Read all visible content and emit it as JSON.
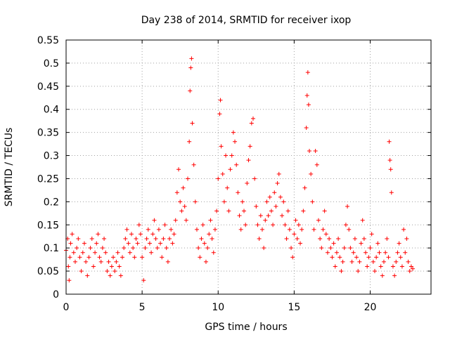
{
  "chart_data": {
    "type": "scatter",
    "title": "Day 238 of 2014, SRMTID for receiver ixop",
    "xlabel": "GPS time / hours",
    "ylabel": "SRMTID / TECUs",
    "xlim": [
      0,
      24
    ],
    "ylim": [
      0,
      0.55
    ],
    "xticks": [
      0,
      5,
      10,
      15,
      20
    ],
    "yticks": [
      0,
      0.05,
      0.1,
      0.15,
      0.2,
      0.25,
      0.3,
      0.35,
      0.4,
      0.45,
      0.5,
      0.55
    ],
    "xtick_labels": [
      "0",
      "5",
      "10",
      "15",
      "20"
    ],
    "ytick_labels": [
      "0",
      "0.05",
      "0.1",
      "0.15",
      "0.2",
      "0.25",
      "0.3",
      "0.35",
      "0.4",
      "0.45",
      "0.5",
      "0.55"
    ],
    "grid": true,
    "marker": "+",
    "marker_color": "#ff0000",
    "series": [
      {
        "name": "SRMTID",
        "points": [
          [
            0.0,
            0.095
          ],
          [
            0.1,
            0.12
          ],
          [
            0.15,
            0.06
          ],
          [
            0.2,
            0.03
          ],
          [
            0.25,
            0.08
          ],
          [
            0.3,
            0.11
          ],
          [
            0.4,
            0.13
          ],
          [
            0.5,
            0.09
          ],
          [
            0.6,
            0.07
          ],
          [
            0.7,
            0.1
          ],
          [
            0.8,
            0.12
          ],
          [
            0.9,
            0.08
          ],
          [
            1.0,
            0.05
          ],
          [
            1.1,
            0.09
          ],
          [
            1.2,
            0.11
          ],
          [
            1.3,
            0.07
          ],
          [
            1.4,
            0.04
          ],
          [
            1.5,
            0.08
          ],
          [
            1.6,
            0.1
          ],
          [
            1.7,
            0.12
          ],
          [
            1.8,
            0.06
          ],
          [
            1.9,
            0.09
          ],
          [
            2.0,
            0.11
          ],
          [
            2.1,
            0.13
          ],
          [
            2.2,
            0.08
          ],
          [
            2.3,
            0.07
          ],
          [
            2.4,
            0.1
          ],
          [
            2.5,
            0.12
          ],
          [
            2.6,
            0.09
          ],
          [
            2.7,
            0.05
          ],
          [
            2.8,
            0.07
          ],
          [
            2.9,
            0.04
          ],
          [
            3.0,
            0.06
          ],
          [
            3.1,
            0.08
          ],
          [
            3.2,
            0.05
          ],
          [
            3.3,
            0.07
          ],
          [
            3.4,
            0.09
          ],
          [
            3.5,
            0.06
          ],
          [
            3.6,
            0.04
          ],
          [
            3.7,
            0.08
          ],
          [
            3.8,
            0.1
          ],
          [
            3.9,
            0.12
          ],
          [
            4.0,
            0.14
          ],
          [
            4.1,
            0.11
          ],
          [
            4.2,
            0.09
          ],
          [
            4.3,
            0.13
          ],
          [
            4.4,
            0.1
          ],
          [
            4.5,
            0.08
          ],
          [
            4.6,
            0.12
          ],
          [
            4.7,
            0.11
          ],
          [
            4.8,
            0.15
          ],
          [
            4.9,
            0.13
          ],
          [
            5.0,
            0.08
          ],
          [
            5.1,
            0.03
          ],
          [
            5.2,
            0.1
          ],
          [
            5.3,
            0.12
          ],
          [
            5.4,
            0.14
          ],
          [
            5.5,
            0.11
          ],
          [
            5.6,
            0.09
          ],
          [
            5.7,
            0.13
          ],
          [
            5.8,
            0.16
          ],
          [
            5.9,
            0.12
          ],
          [
            6.0,
            0.1
          ],
          [
            6.1,
            0.14
          ],
          [
            6.2,
            0.11
          ],
          [
            6.3,
            0.08
          ],
          [
            6.4,
            0.12
          ],
          [
            6.5,
            0.15
          ],
          [
            6.6,
            0.1
          ],
          [
            6.7,
            0.07
          ],
          [
            6.8,
            0.12
          ],
          [
            6.9,
            0.14
          ],
          [
            7.0,
            0.11
          ],
          [
            7.1,
            0.13
          ],
          [
            7.2,
            0.16
          ],
          [
            7.3,
            0.22
          ],
          [
            7.4,
            0.27
          ],
          [
            7.5,
            0.2
          ],
          [
            7.6,
            0.18
          ],
          [
            7.7,
            0.23
          ],
          [
            7.8,
            0.19
          ],
          [
            7.9,
            0.16
          ],
          [
            8.0,
            0.25
          ],
          [
            8.1,
            0.33
          ],
          [
            8.15,
            0.44
          ],
          [
            8.2,
            0.49
          ],
          [
            8.25,
            0.51
          ],
          [
            8.3,
            0.37
          ],
          [
            8.4,
            0.28
          ],
          [
            8.5,
            0.2
          ],
          [
            8.6,
            0.14
          ],
          [
            8.7,
            0.1
          ],
          [
            8.8,
            0.08
          ],
          [
            8.9,
            0.12
          ],
          [
            9.0,
            0.15
          ],
          [
            9.1,
            0.11
          ],
          [
            9.2,
            0.07
          ],
          [
            9.3,
            0.1
          ],
          [
            9.4,
            0.13
          ],
          [
            9.5,
            0.16
          ],
          [
            9.6,
            0.12
          ],
          [
            9.7,
            0.09
          ],
          [
            9.8,
            0.14
          ],
          [
            9.9,
            0.18
          ],
          [
            10.0,
            0.25
          ],
          [
            10.1,
            0.39
          ],
          [
            10.15,
            0.42
          ],
          [
            10.2,
            0.32
          ],
          [
            10.3,
            0.26
          ],
          [
            10.4,
            0.2
          ],
          [
            10.5,
            0.3
          ],
          [
            10.6,
            0.23
          ],
          [
            10.7,
            0.18
          ],
          [
            10.8,
            0.27
          ],
          [
            10.9,
            0.3
          ],
          [
            11.0,
            0.35
          ],
          [
            11.1,
            0.33
          ],
          [
            11.2,
            0.28
          ],
          [
            11.3,
            0.22
          ],
          [
            11.4,
            0.17
          ],
          [
            11.5,
            0.14
          ],
          [
            11.6,
            0.2
          ],
          [
            11.7,
            0.18
          ],
          [
            11.8,
            0.15
          ],
          [
            11.9,
            0.24
          ],
          [
            12.0,
            0.29
          ],
          [
            12.1,
            0.32
          ],
          [
            12.2,
            0.37
          ],
          [
            12.3,
            0.38
          ],
          [
            12.4,
            0.25
          ],
          [
            12.5,
            0.19
          ],
          [
            12.6,
            0.15
          ],
          [
            12.7,
            0.12
          ],
          [
            12.8,
            0.17
          ],
          [
            12.9,
            0.14
          ],
          [
            13.0,
            0.1
          ],
          [
            13.1,
            0.16
          ],
          [
            13.2,
            0.2
          ],
          [
            13.3,
            0.17
          ],
          [
            13.4,
            0.21
          ],
          [
            13.5,
            0.18
          ],
          [
            13.6,
            0.15
          ],
          [
            13.7,
            0.22
          ],
          [
            13.8,
            0.19
          ],
          [
            13.9,
            0.24
          ],
          [
            14.0,
            0.26
          ],
          [
            14.1,
            0.21
          ],
          [
            14.2,
            0.17
          ],
          [
            14.3,
            0.2
          ],
          [
            14.4,
            0.15
          ],
          [
            14.5,
            0.12
          ],
          [
            14.6,
            0.18
          ],
          [
            14.7,
            0.14
          ],
          [
            14.8,
            0.1
          ],
          [
            14.9,
            0.08
          ],
          [
            15.0,
            0.13
          ],
          [
            15.1,
            0.16
          ],
          [
            15.2,
            0.12
          ],
          [
            15.3,
            0.15
          ],
          [
            15.4,
            0.11
          ],
          [
            15.5,
            0.14
          ],
          [
            15.6,
            0.18
          ],
          [
            15.7,
            0.23
          ],
          [
            15.8,
            0.36
          ],
          [
            15.85,
            0.43
          ],
          [
            15.9,
            0.48
          ],
          [
            15.95,
            0.41
          ],
          [
            16.0,
            0.31
          ],
          [
            16.1,
            0.26
          ],
          [
            16.2,
            0.2
          ],
          [
            16.3,
            0.14
          ],
          [
            16.4,
            0.31
          ],
          [
            16.5,
            0.28
          ],
          [
            16.6,
            0.16
          ],
          [
            16.7,
            0.12
          ],
          [
            16.8,
            0.1
          ],
          [
            16.9,
            0.14
          ],
          [
            17.0,
            0.18
          ],
          [
            17.1,
            0.13
          ],
          [
            17.2,
            0.09
          ],
          [
            17.3,
            0.12
          ],
          [
            17.4,
            0.1
          ],
          [
            17.5,
            0.08
          ],
          [
            17.6,
            0.11
          ],
          [
            17.7,
            0.06
          ],
          [
            17.8,
            0.09
          ],
          [
            17.9,
            0.12
          ],
          [
            18.0,
            0.08
          ],
          [
            18.1,
            0.05
          ],
          [
            18.2,
            0.07
          ],
          [
            18.3,
            0.1
          ],
          [
            18.4,
            0.15
          ],
          [
            18.5,
            0.19
          ],
          [
            18.6,
            0.14
          ],
          [
            18.7,
            0.1
          ],
          [
            18.8,
            0.07
          ],
          [
            18.9,
            0.09
          ],
          [
            19.0,
            0.12
          ],
          [
            19.1,
            0.08
          ],
          [
            19.2,
            0.05
          ],
          [
            19.3,
            0.07
          ],
          [
            19.4,
            0.11
          ],
          [
            19.5,
            0.16
          ],
          [
            19.6,
            0.12
          ],
          [
            19.7,
            0.09
          ],
          [
            19.8,
            0.06
          ],
          [
            19.9,
            0.08
          ],
          [
            20.0,
            0.1
          ],
          [
            20.1,
            0.13
          ],
          [
            20.2,
            0.07
          ],
          [
            20.3,
            0.05
          ],
          [
            20.4,
            0.08
          ],
          [
            20.5,
            0.11
          ],
          [
            20.6,
            0.09
          ],
          [
            20.7,
            0.06
          ],
          [
            20.8,
            0.04
          ],
          [
            20.9,
            0.07
          ],
          [
            21.0,
            0.09
          ],
          [
            21.1,
            0.12
          ],
          [
            21.2,
            0.08
          ],
          [
            21.25,
            0.33
          ],
          [
            21.3,
            0.29
          ],
          [
            21.35,
            0.27
          ],
          [
            21.4,
            0.22
          ],
          [
            21.5,
            0.06
          ],
          [
            21.6,
            0.04
          ],
          [
            21.7,
            0.07
          ],
          [
            21.8,
            0.09
          ],
          [
            21.9,
            0.11
          ],
          [
            22.0,
            0.08
          ],
          [
            22.1,
            0.06
          ],
          [
            22.2,
            0.14
          ],
          [
            22.3,
            0.09
          ],
          [
            22.4,
            0.12
          ],
          [
            22.5,
            0.07
          ],
          [
            22.6,
            0.05
          ],
          [
            22.7,
            0.06
          ],
          [
            22.8,
            0.055
          ]
        ]
      }
    ]
  }
}
